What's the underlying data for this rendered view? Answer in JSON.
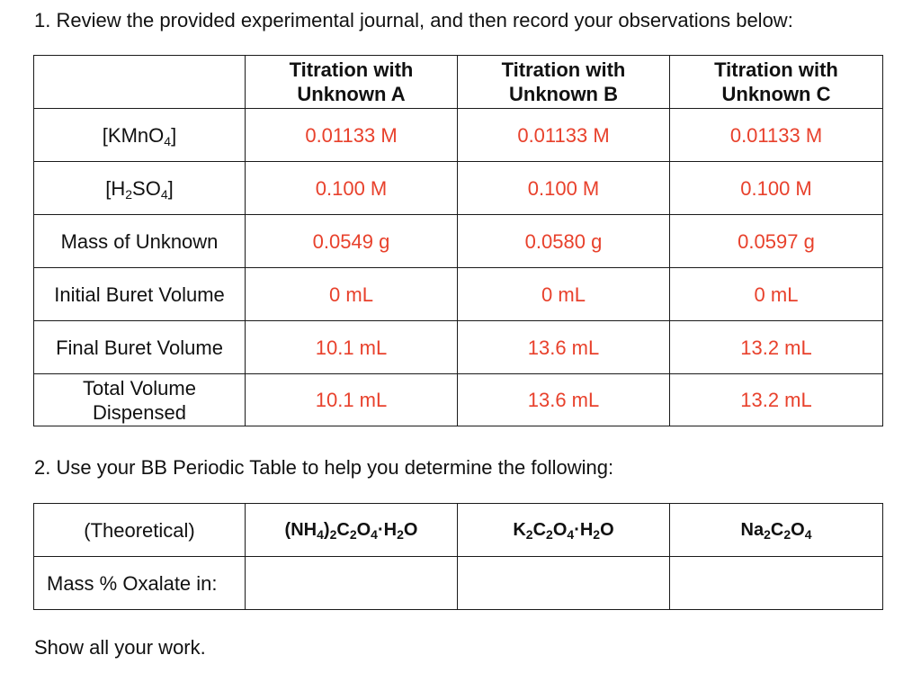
{
  "question1": {
    "heading": "1.  Review the provided experimental journal, and then record your observations below:",
    "columns": [
      {
        "line1": "Titration with",
        "line2": "Unknown A"
      },
      {
        "line1": "Titration with",
        "line2": "Unknown B"
      },
      {
        "line1": "Titration with",
        "line2": "Unknown C"
      }
    ],
    "rows": [
      {
        "label_main": "[KMnO",
        "label_sub": "4",
        "label_tail": "]",
        "values": [
          "0.01133 M",
          "0.01133 M",
          "0.01133 M"
        ]
      },
      {
        "label_main": "[H",
        "label_sub": "2",
        "label_mid": "SO",
        "label_sub2": "4",
        "label_tail": "]",
        "values": [
          "0.100 M",
          "0.100 M",
          "0.100 M"
        ]
      },
      {
        "label": "Mass of Unknown",
        "values": [
          "0.0549 g",
          "0.0580 g",
          "0.0597 g"
        ]
      },
      {
        "label": "Initial Buret Volume",
        "values": [
          "0 mL",
          "0 mL",
          "0 mL"
        ]
      },
      {
        "label": "Final Buret Volume",
        "values": [
          "10.1 mL",
          "13.6 mL",
          "13.2 mL"
        ]
      },
      {
        "label_line1": "Total Volume",
        "label_line2": "Dispensed",
        "values": [
          "10.1 mL",
          "13.6 mL",
          "13.2 mL"
        ]
      }
    ]
  },
  "question2": {
    "heading": "2.  Use your BB Periodic Table to help you determine the following:",
    "header_label": "(Theoretical)",
    "compounds": [
      {
        "parts": [
          "(NH",
          "4",
          ")",
          "2",
          "C",
          "2",
          "O",
          "4",
          "·H",
          "2",
          "O"
        ]
      },
      {
        "parts": [
          "K",
          "2",
          "C",
          "2",
          "O",
          "4",
          "·H",
          "2",
          "O"
        ]
      },
      {
        "parts": [
          "Na",
          "2",
          "C",
          "2",
          "O",
          "4"
        ]
      }
    ],
    "row_label": "Mass % Oxalate in:"
  },
  "footer_note": "Show all your work.",
  "colors": {
    "value_text": "#e8412c",
    "border": "#1a1a1a"
  }
}
